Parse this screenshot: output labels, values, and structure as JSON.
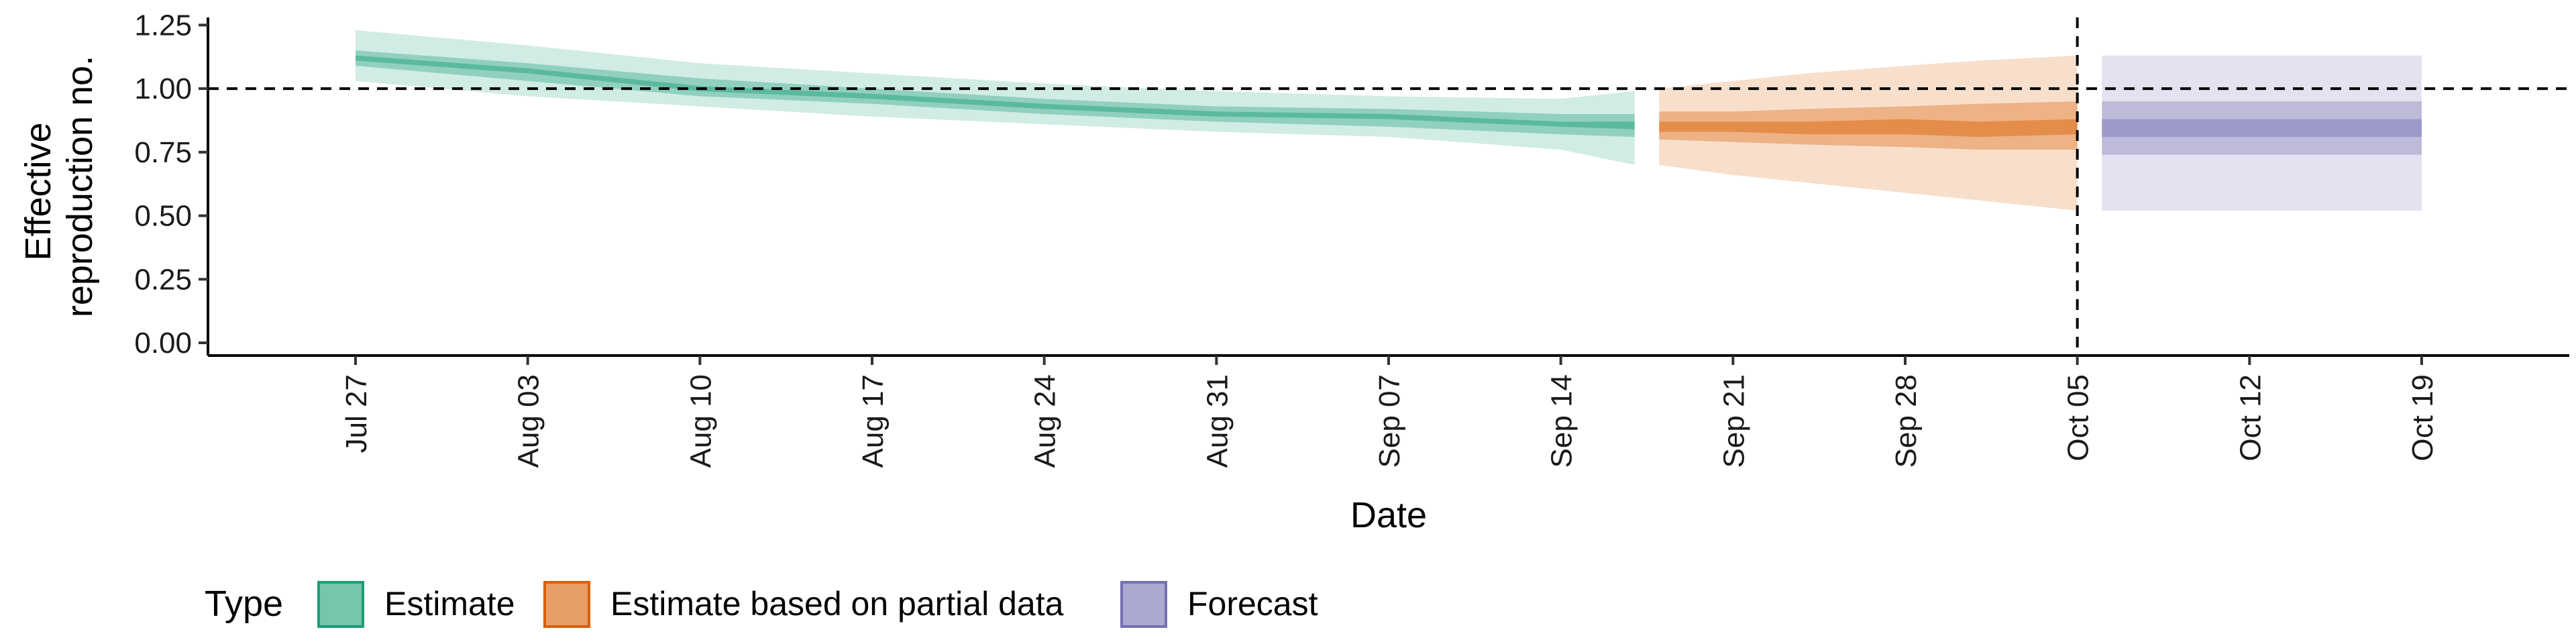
{
  "chart_data": {
    "type": "area",
    "title": "",
    "xlabel": "Date",
    "ylabel_lines": [
      "Effective",
      "reproduction no."
    ],
    "ylim": [
      -0.05,
      1.28
    ],
    "y_ticks": [
      0.0,
      0.25,
      0.5,
      0.75,
      1.0,
      1.25
    ],
    "y_tick_labels": [
      "0.00",
      "0.25",
      "0.50",
      "0.75",
      "1.00",
      "1.25"
    ],
    "xlim": [
      "2020-07-21",
      "2020-10-25"
    ],
    "x_tick_labels": [
      "Jul 27",
      "Aug 03",
      "Aug 10",
      "Aug 17",
      "Aug 24",
      "Aug 31",
      "Sep 07",
      "Sep 14",
      "Sep 21",
      "Sep 28",
      "Oct 05",
      "Oct 12",
      "Oct 19"
    ],
    "x_tick_dates": [
      "2020-07-27",
      "2020-08-03",
      "2020-08-10",
      "2020-08-17",
      "2020-08-24",
      "2020-08-31",
      "2020-09-07",
      "2020-09-14",
      "2020-09-21",
      "2020-09-28",
      "2020-10-05",
      "2020-10-12",
      "2020-10-19"
    ],
    "hline_y": 1.0,
    "vline_x": "2020-10-05",
    "grid": false,
    "legend_position": "bottom-left",
    "legend_title": "Type",
    "series": [
      {
        "name": "Estimate",
        "color": "#1b9e77",
        "dates": [
          "2020-07-27",
          "2020-08-03",
          "2020-08-10",
          "2020-08-17",
          "2020-08-24",
          "2020-08-31",
          "2020-09-07",
          "2020-09-14",
          "2020-09-17"
        ],
        "median": [
          1.12,
          1.07,
          1.0,
          0.97,
          0.93,
          0.9,
          0.89,
          0.86,
          0.86
        ],
        "lower_90": [
          1.03,
          0.97,
          0.93,
          0.89,
          0.86,
          0.83,
          0.81,
          0.76,
          0.7
        ],
        "upper_90": [
          1.23,
          1.17,
          1.1,
          1.06,
          1.02,
          0.99,
          0.97,
          0.96,
          0.99
        ],
        "lower_50": [
          1.09,
          1.03,
          0.97,
          0.94,
          0.9,
          0.87,
          0.85,
          0.82,
          0.81
        ],
        "upper_50": [
          1.15,
          1.1,
          1.04,
          1.0,
          0.96,
          0.93,
          0.92,
          0.9,
          0.9
        ],
        "lower_20": [
          1.11,
          1.06,
          0.99,
          0.96,
          0.92,
          0.89,
          0.88,
          0.85,
          0.84
        ],
        "upper_20": [
          1.13,
          1.08,
          1.01,
          0.98,
          0.94,
          0.91,
          0.9,
          0.87,
          0.87
        ]
      },
      {
        "name": "Estimate based on partial data",
        "color": "#d95f02",
        "dates": [
          "2020-09-18",
          "2020-09-21",
          "2020-09-24",
          "2020-09-28",
          "2020-10-01",
          "2020-10-05"
        ],
        "median": [
          0.85,
          0.85,
          0.85,
          0.85,
          0.84,
          0.85
        ],
        "lower_90": [
          0.7,
          0.66,
          0.63,
          0.59,
          0.56,
          0.52
        ],
        "upper_90": [
          1.0,
          1.03,
          1.06,
          1.09,
          1.11,
          1.13
        ],
        "lower_50": [
          0.8,
          0.79,
          0.78,
          0.77,
          0.76,
          0.76
        ],
        "upper_50": [
          0.91,
          0.91,
          0.92,
          0.93,
          0.94,
          0.95
        ],
        "lower_20": [
          0.83,
          0.83,
          0.82,
          0.82,
          0.81,
          0.82
        ],
        "upper_20": [
          0.87,
          0.87,
          0.87,
          0.88,
          0.87,
          0.88
        ]
      },
      {
        "name": "Forecast",
        "color": "#7570b3",
        "dates": [
          "2020-10-06",
          "2020-10-19"
        ],
        "median": [
          0.85,
          0.85
        ],
        "lower_90": [
          0.52,
          0.52
        ],
        "upper_90": [
          1.13,
          1.13
        ],
        "lower_50": [
          0.74,
          0.74
        ],
        "upper_50": [
          0.95,
          0.95
        ],
        "lower_20": [
          0.81,
          0.81
        ],
        "upper_20": [
          0.88,
          0.88
        ]
      }
    ],
    "band_opacity": {
      "outer": 0.2,
      "middle": 0.35,
      "inner": 0.45
    }
  }
}
